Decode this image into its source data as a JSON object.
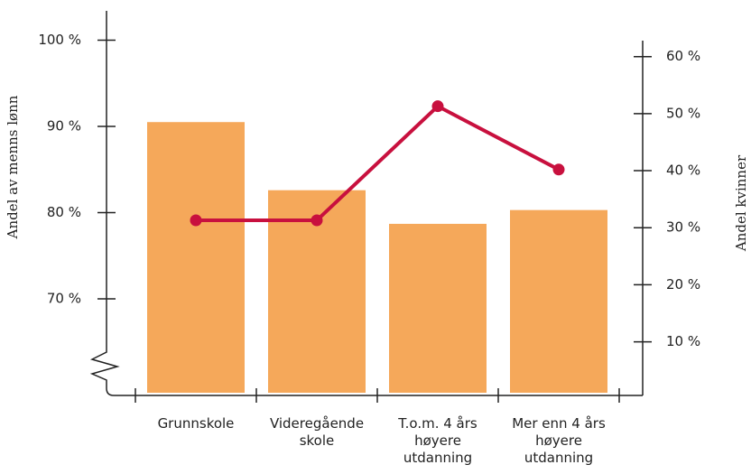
{
  "chart_data": {
    "type": "bar",
    "categories": [
      "Grunnskole",
      "Videregående skole",
      "T.o.m. 4 års høyere utdanning",
      "Mer enn 4 års høyere utdanning"
    ],
    "series": [
      {
        "type": "bar",
        "color": "#f5a85a",
        "values": [
          90.5,
          82.6,
          78.7,
          80.3
        ]
      },
      {
        "type": "line",
        "axis": "y2",
        "color": "#c8103e",
        "values": [
          31.3,
          31.3,
          51.3,
          40.2
        ]
      }
    ],
    "ylabel": "Andel av menns lønn",
    "y2label": "Andel kvinner",
    "ylim": [
      58.8,
      103.4
    ],
    "yticks": [
      {
        "value": 70,
        "label": "70 %"
      },
      {
        "value": 80,
        "label": "80 %"
      },
      {
        "value": 90,
        "label": "90 %"
      },
      {
        "value": 100,
        "label": "100 %"
      }
    ],
    "y2lim": [
      0.6,
      62.8
    ],
    "y2ticks": [
      {
        "value": 10,
        "label": "10 %"
      },
      {
        "value": 20,
        "label": "20 %"
      },
      {
        "value": 30,
        "label": "30 %"
      },
      {
        "value": 40,
        "label": "40 %"
      },
      {
        "value": 50,
        "label": "50 %"
      },
      {
        "value": 60,
        "label": "60 %"
      }
    ]
  }
}
